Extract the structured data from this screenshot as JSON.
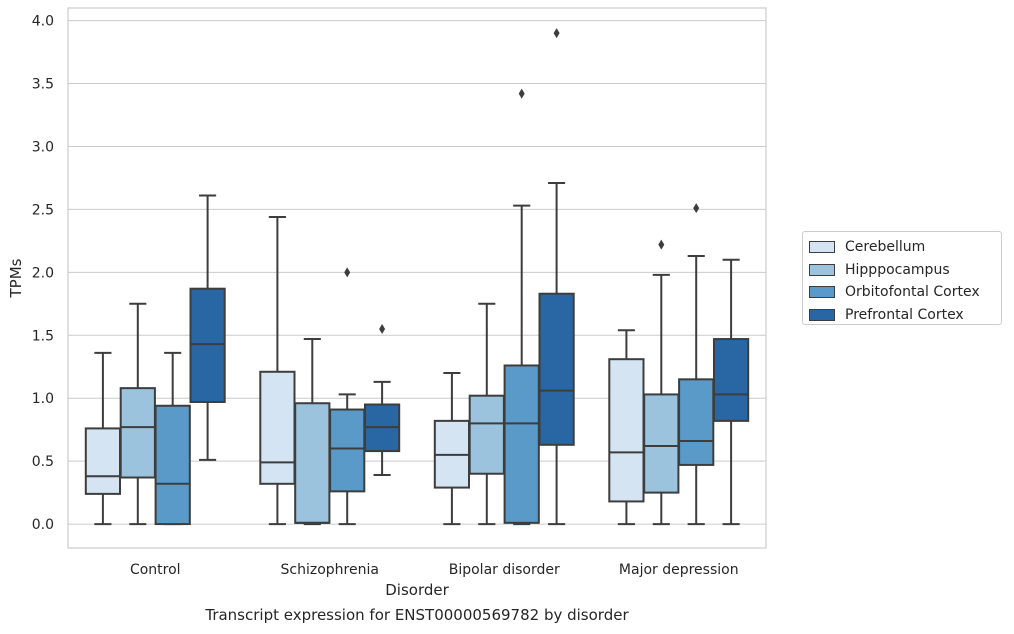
{
  "chart_data": {
    "type": "boxplot",
    "caption": "Transcript expression for ENST00000569782 by disorder",
    "xlabel": "Disorder",
    "ylabel": "TPMs",
    "ylim": [
      -0.19,
      4.1
    ],
    "yticks": [
      "0.0",
      "0.5",
      "1.0",
      "1.5",
      "2.0",
      "2.5",
      "3.0",
      "3.5",
      "4.0"
    ],
    "grid": true,
    "legend_position": "right",
    "categories": [
      "Control",
      "Schizophrenia",
      "Bipolar disorder",
      "Major depression"
    ],
    "series": [
      {
        "name": "Cerebellum",
        "color": "#d5e4f3",
        "boxes": [
          {
            "whislo": 0.0,
            "q1": 0.24,
            "med": 0.38,
            "q3": 0.76,
            "whishi": 1.36,
            "fliers": []
          },
          {
            "whislo": 0.0,
            "q1": 0.32,
            "med": 0.49,
            "q3": 1.21,
            "whishi": 2.44,
            "fliers": []
          },
          {
            "whislo": 0.0,
            "q1": 0.29,
            "med": 0.55,
            "q3": 0.82,
            "whishi": 1.2,
            "fliers": []
          },
          {
            "whislo": 0.0,
            "q1": 0.18,
            "med": 0.57,
            "q3": 1.31,
            "whishi": 1.54,
            "fliers": []
          }
        ]
      },
      {
        "name": "Hipppocampus",
        "color": "#9bc3dd",
        "boxes": [
          {
            "whislo": 0.0,
            "q1": 0.37,
            "med": 0.77,
            "q3": 1.08,
            "whishi": 1.75,
            "fliers": []
          },
          {
            "whislo": 0.0,
            "q1": 0.01,
            "med": 0.01,
            "q3": 0.96,
            "whishi": 1.47,
            "fliers": []
          },
          {
            "whislo": 0.0,
            "q1": 0.4,
            "med": 0.8,
            "q3": 1.02,
            "whishi": 1.75,
            "fliers": []
          },
          {
            "whislo": 0.0,
            "q1": 0.25,
            "med": 0.62,
            "q3": 1.03,
            "whishi": 1.98,
            "fliers": [
              2.22
            ]
          }
        ]
      },
      {
        "name": "Orbitofontal Cortex",
        "color": "#5a9ac8",
        "boxes": [
          {
            "whislo": 0.0,
            "q1": 0.0,
            "med": 0.32,
            "q3": 0.94,
            "whishi": 1.36,
            "fliers": []
          },
          {
            "whislo": 0.0,
            "q1": 0.26,
            "med": 0.6,
            "q3": 0.91,
            "whishi": 1.03,
            "fliers": [
              2.0
            ]
          },
          {
            "whislo": 0.0,
            "q1": 0.01,
            "med": 0.8,
            "q3": 1.26,
            "whishi": 2.53,
            "fliers": [
              3.42
            ]
          },
          {
            "whislo": 0.0,
            "q1": 0.47,
            "med": 0.66,
            "q3": 1.15,
            "whishi": 2.13,
            "fliers": [
              2.51
            ]
          }
        ]
      },
      {
        "name": "Prefrontal Cortex",
        "color": "#2866a4",
        "boxes": [
          {
            "whislo": 0.51,
            "q1": 0.97,
            "med": 1.43,
            "q3": 1.87,
            "whishi": 2.61,
            "fliers": []
          },
          {
            "whislo": 0.39,
            "q1": 0.58,
            "med": 0.77,
            "q3": 0.95,
            "whishi": 1.13,
            "fliers": [
              1.55
            ]
          },
          {
            "whislo": 0.0,
            "q1": 0.63,
            "med": 1.06,
            "q3": 1.83,
            "whishi": 2.71,
            "fliers": [
              3.9
            ]
          },
          {
            "whislo": 0.0,
            "q1": 0.82,
            "med": 1.03,
            "q3": 1.47,
            "whishi": 2.1,
            "fliers": []
          }
        ]
      }
    ]
  }
}
